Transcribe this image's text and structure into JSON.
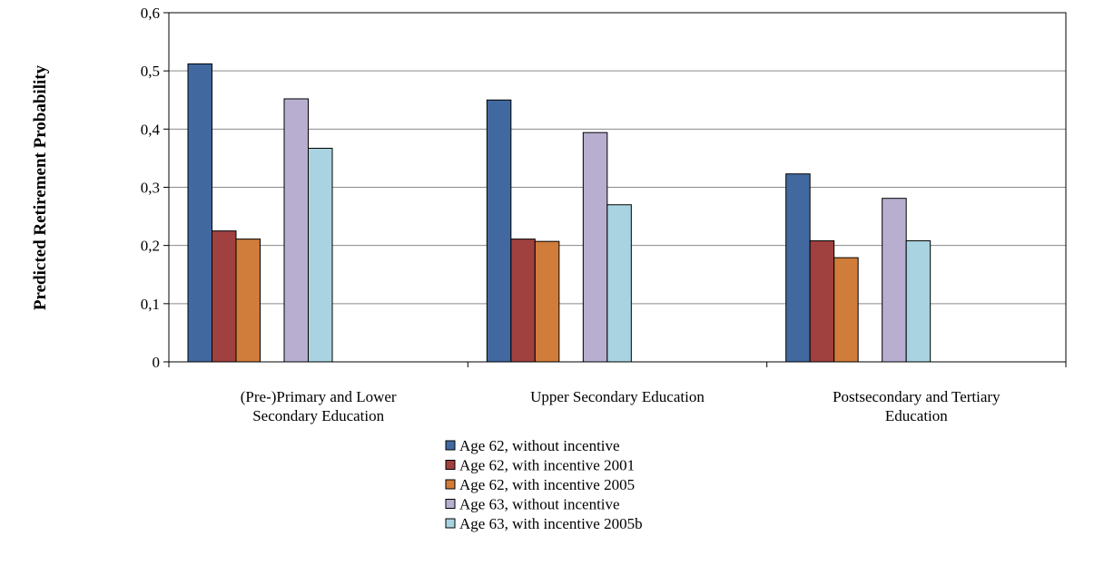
{
  "chart_data": {
    "type": "bar",
    "title": "",
    "xlabel": "",
    "ylabel": "Predicted Retirement Probability",
    "ylim": [
      0,
      0.6
    ],
    "yticks": [
      "0",
      "0,1",
      "0,2",
      "0,3",
      "0,4",
      "0,5",
      "0,6"
    ],
    "grid": true,
    "legend_position": "bottom",
    "categories": [
      [
        "(Pre-)Primary and Lower",
        "Secondary Education"
      ],
      [
        "Upper Secondary Education"
      ],
      [
        "Postsecondary and Tertiary",
        "Education"
      ]
    ],
    "series": [
      {
        "name": "Age 62, without incentive",
        "color": "#4169A0",
        "values": [
          0.512,
          0.45,
          0.323
        ]
      },
      {
        "name": "Age 62, with incentive 2001",
        "color": "#A0403F",
        "values": [
          0.225,
          0.211,
          0.208
        ]
      },
      {
        "name": "Age 62, with incentive 2005",
        "color": "#D07C3A",
        "values": [
          0.211,
          0.207,
          0.179
        ]
      },
      {
        "name": "Age 63, without incentive",
        "color": "#B8AED0",
        "values": [
          0.452,
          0.394,
          0.281
        ]
      },
      {
        "name": "Age 63, with incentive 2005b",
        "color": "#A9D3E0",
        "values": [
          0.367,
          0.27,
          0.208
        ]
      }
    ]
  }
}
